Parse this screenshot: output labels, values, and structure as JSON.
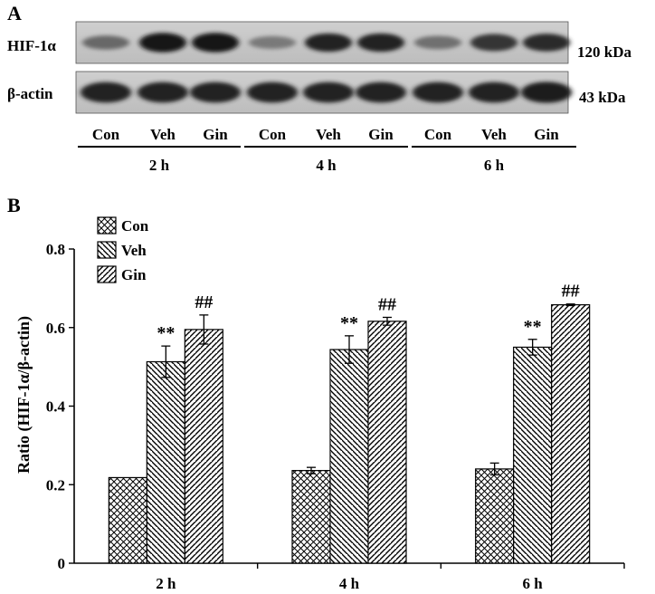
{
  "panel_a_label": "A",
  "panel_b_label": "B",
  "blot": {
    "rows": [
      {
        "protein": "HIF-1α",
        "size": "120 kDa"
      },
      {
        "protein": "β-actin",
        "size": "43 kDa"
      }
    ],
    "lane_labels": [
      "Con",
      "Veh",
      "Gin",
      "Con",
      "Veh",
      "Gin",
      "Con",
      "Veh",
      "Gin"
    ],
    "time_groups": [
      "2 h",
      "4 h",
      "6 h"
    ],
    "band_intensity": {
      "HIF-1α": [
        0.45,
        0.95,
        0.95,
        0.35,
        0.85,
        0.85,
        0.4,
        0.75,
        0.8
      ],
      "β-actin": [
        0.85,
        0.85,
        0.85,
        0.85,
        0.85,
        0.85,
        0.85,
        0.85,
        0.9
      ]
    }
  },
  "chart_data": {
    "type": "bar",
    "ylabel": "Ratio (HIF-1α/β-actin)",
    "xlabel": "",
    "categories": [
      "2 h",
      "4 h",
      "6 h"
    ],
    "ylim": [
      0,
      0.8
    ],
    "yticks": [
      "0",
      "0.2",
      "0.4",
      "0.6",
      "0.8"
    ],
    "yticks_values": [
      0,
      0.2,
      0.4,
      0.6,
      0.8
    ],
    "legend_position": "top-left",
    "series": [
      {
        "name": "Con",
        "pattern": "crosshatch",
        "values": [
          0.218,
          0.236,
          0.24
        ],
        "errors": [
          0.0,
          0.008,
          0.015
        ],
        "annotations": [
          "",
          "",
          ""
        ]
      },
      {
        "name": "Veh",
        "pattern": "diag-down",
        "values": [
          0.513,
          0.544,
          0.55
        ],
        "errors": [
          0.04,
          0.035,
          0.02
        ],
        "annotations": [
          "**",
          "**",
          "**"
        ]
      },
      {
        "name": "Gin",
        "pattern": "diag-up",
        "values": [
          0.595,
          0.616,
          0.658
        ],
        "errors": [
          0.037,
          0.01,
          0.002
        ],
        "annotations": [
          "##",
          "##",
          "##"
        ]
      }
    ]
  }
}
